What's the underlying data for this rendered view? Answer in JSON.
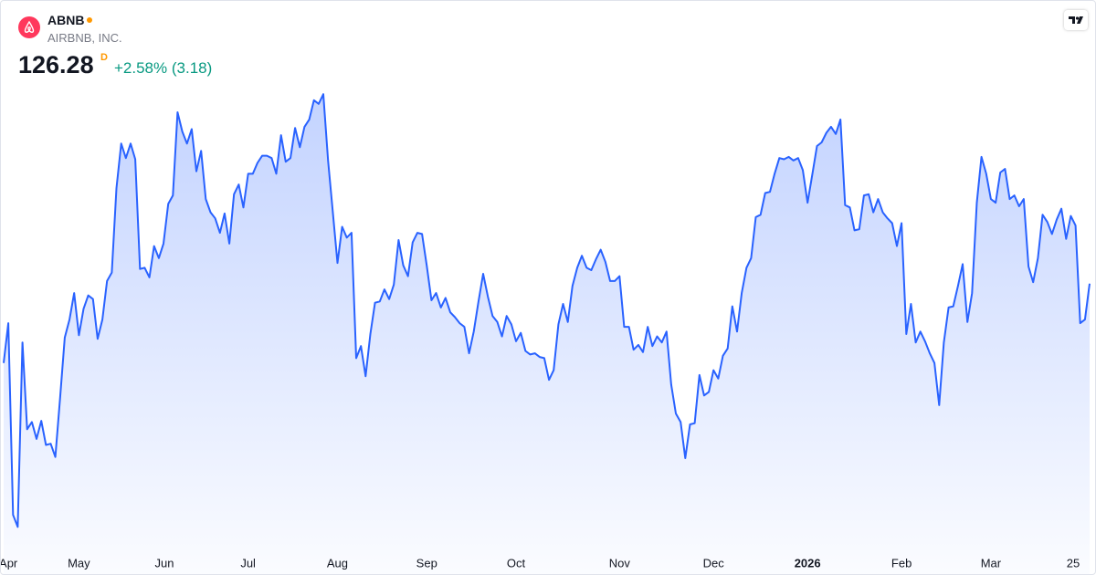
{
  "header": {
    "symbol": "ABNB",
    "name": "AIRBNB, INC.",
    "price": "126.28",
    "price_flag": "D",
    "change": "+2.58% (3.18)"
  },
  "chart_data": {
    "type": "area",
    "color": "#2962ff",
    "ylim": [
      104,
      143
    ],
    "xticks": [
      {
        "value": 1,
        "label": "Apr"
      },
      {
        "value": 16,
        "label": "May"
      },
      {
        "value": 34.2,
        "label": "Jun"
      },
      {
        "value": 52,
        "label": "Jul"
      },
      {
        "value": 71,
        "label": "Aug"
      },
      {
        "value": 90,
        "label": "Sep"
      },
      {
        "value": 109,
        "label": "Oct"
      },
      {
        "value": 131,
        "label": "Nov"
      },
      {
        "value": 151,
        "label": "Dec"
      },
      {
        "value": 171,
        "label": "2026"
      },
      {
        "value": 191,
        "label": "Feb"
      },
      {
        "value": 210,
        "label": "Mar"
      },
      {
        "value": 227.5,
        "label": "25"
      }
    ],
    "values": [
      119.7,
      123.0,
      107.1,
      106.1,
      121.4,
      114.2,
      114.8,
      113.4,
      114.9,
      112.9,
      113.0,
      111.9,
      116.8,
      121.8,
      123.3,
      125.5,
      122.0,
      124.2,
      125.3,
      125.0,
      121.7,
      123.3,
      126.5,
      127.2,
      134.2,
      137.9,
      136.7,
      137.9,
      136.6,
      127.5,
      127.6,
      126.8,
      129.4,
      128.4,
      129.6,
      132.9,
      133.6,
      140.5,
      138.9,
      137.9,
      139.1,
      135.6,
      137.3,
      133.3,
      132.2,
      131.7,
      130.5,
      132.1,
      129.6,
      133.7,
      134.5,
      132.6,
      135.4,
      135.4,
      136.3,
      136.9,
      136.9,
      136.7,
      135.4,
      138.6,
      136.4,
      136.7,
      139.2,
      137.6,
      139.3,
      139.9,
      141.5,
      141.2,
      142.0,
      136.5,
      132.3,
      128.0,
      131.0,
      130.1,
      130.5,
      120.1,
      121.1,
      118.6,
      122.1,
      124.7,
      124.8,
      125.8,
      125.0,
      126.2,
      129.9,
      127.8,
      126.9,
      129.7,
      130.5,
      130.4,
      127.8,
      124.9,
      125.5,
      124.3,
      125.1,
      123.9,
      123.5,
      123.0,
      122.7,
      120.5,
      122.3,
      124.8,
      127.1,
      125.2,
      123.6,
      123.1,
      121.9,
      123.6,
      122.9,
      121.5,
      122.2,
      120.7,
      120.4,
      120.5,
      120.2,
      120.1,
      118.3,
      119.1,
      122.9,
      124.6,
      123.1,
      126.1,
      127.6,
      128.6,
      127.6,
      127.4,
      128.3,
      129.1,
      128.1,
      126.5,
      126.5,
      126.9,
      122.7,
      122.7,
      120.8,
      121.2,
      120.6,
      122.7,
      121.1,
      121.9,
      121.4,
      122.3,
      117.9,
      115.5,
      114.8,
      111.8,
      114.6,
      114.7,
      118.7,
      117.0,
      117.3,
      119.1,
      118.4,
      120.3,
      120.9,
      124.4,
      122.3,
      125.5,
      127.6,
      128.4,
      131.8,
      132.0,
      133.8,
      133.9,
      135.4,
      136.7,
      136.6,
      136.8,
      136.5,
      136.7,
      135.7,
      133.0,
      135.3,
      137.7,
      138.0,
      138.8,
      139.3,
      138.7,
      139.9,
      132.8,
      132.6,
      130.7,
      130.8,
      133.6,
      133.7,
      132.2,
      133.3,
      132.2,
      131.7,
      131.3,
      129.4,
      131.3,
      122.1,
      124.6,
      121.4,
      122.3,
      121.5,
      120.5,
      119.7,
      116.2,
      121.4,
      124.3,
      124.4,
      126.1,
      127.9,
      123.1,
      125.5,
      133.0,
      136.8,
      135.4,
      133.3,
      133.0,
      135.5,
      135.8,
      133.3,
      133.6,
      132.7,
      133.3,
      127.7,
      126.4,
      128.4,
      132.0,
      131.4,
      130.4,
      131.6,
      132.5,
      130.0,
      131.9,
      131.1,
      123.0,
      123.3,
      126.28
    ]
  }
}
